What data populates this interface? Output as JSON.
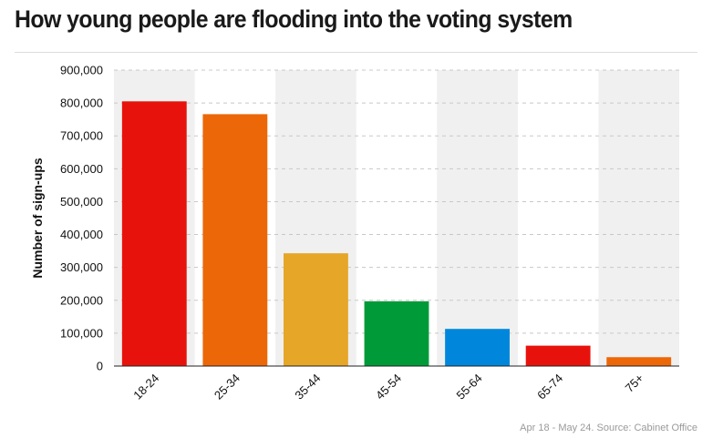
{
  "header": {
    "title": "How young people are flooding into the voting system"
  },
  "footer": {
    "source": "Apr 18 - May 24. Source: Cabinet Office"
  },
  "colors": {
    "band": "#f0f0f0",
    "grid": "#c8c8c8",
    "axis": "#222222"
  },
  "chart_data": {
    "type": "bar",
    "title": "How young people are flooding into the voting system",
    "xlabel": "",
    "ylabel": "Number of sign-ups",
    "ylim": [
      0,
      900000
    ],
    "yticks": [
      0,
      100000,
      200000,
      300000,
      400000,
      500000,
      600000,
      700000,
      800000,
      900000
    ],
    "ytick_labels": [
      "0",
      "100,000",
      "200,000",
      "300,000",
      "400,000",
      "500,000",
      "600,000",
      "700,000",
      "800,000",
      "900,000"
    ],
    "categories": [
      "18-24",
      "25-34",
      "35-44",
      "45-54",
      "55-64",
      "65-74",
      "75+"
    ],
    "values": [
      805000,
      766000,
      343000,
      197000,
      113000,
      62000,
      27000
    ],
    "bar_colors": [
      "#e8120c",
      "#ec6707",
      "#e6a628",
      "#009b38",
      "#0087dc",
      "#e8120c",
      "#ec6707"
    ],
    "grid": true,
    "alternating_bands": true
  }
}
